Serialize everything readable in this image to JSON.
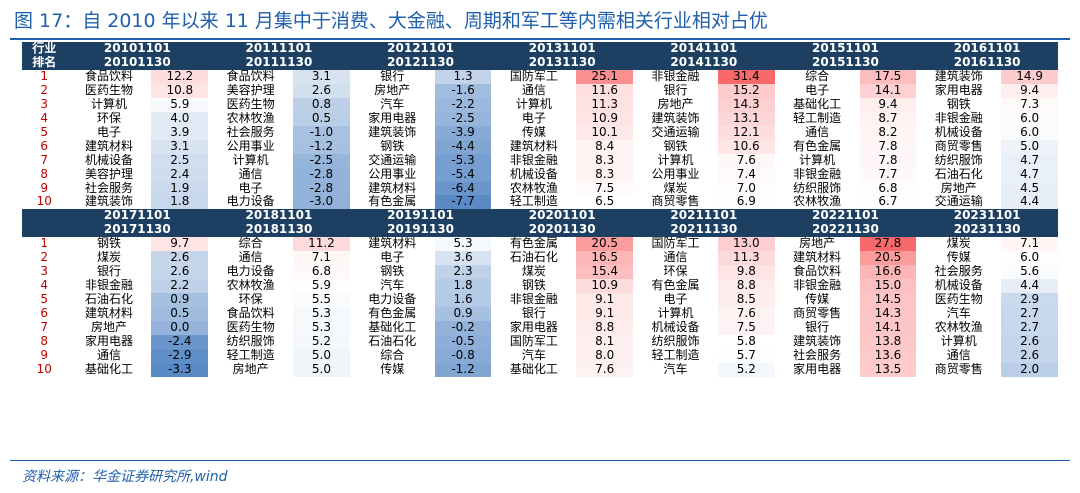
{
  "title": "图 17：自 2010 年以来 11 月集中于消费、大金融、周期和军工等内需相关行业相对占优",
  "source": "资料来源：华金证券研究所,wind",
  "header_labels": {
    "industry": "行业",
    "rank": "排名"
  },
  "colors": {
    "header_bg": "#1d3f62",
    "title": "#1f5fae",
    "rank_text": "#c00000",
    "positive_max": "#f8696b",
    "negative_max": "#5a8ac6",
    "neutral": "#ffffff"
  },
  "blocks": [
    {
      "periods": [
        {
          "start": "20101101",
          "end": "20101130",
          "industries": [
            "食品饮料",
            "医药生物",
            "计算机",
            "环保",
            "电子",
            "建筑材料",
            "机械设备",
            "美容护理",
            "社会服务",
            "建筑装饰"
          ],
          "values": [
            "12.2",
            "10.8",
            "5.9",
            "4.0",
            "3.9",
            "3.1",
            "2.5",
            "2.4",
            "1.9",
            "1.8"
          ]
        },
        {
          "start": "20111101",
          "end": "20111130",
          "industries": [
            "食品饮料",
            "美容护理",
            "医药生物",
            "农林牧渔",
            "社会服务",
            "公用事业",
            "计算机",
            "通信",
            "电子",
            "电力设备"
          ],
          "values": [
            "3.1",
            "2.6",
            "0.8",
            "0.5",
            "-1.0",
            "-1.2",
            "-2.5",
            "-2.8",
            "-2.8",
            "-3.0"
          ]
        },
        {
          "start": "20121101",
          "end": "20121130",
          "industries": [
            "银行",
            "房地产",
            "汽车",
            "家用电器",
            "建筑装饰",
            "钢铁",
            "交通运输",
            "公用事业",
            "建筑材料",
            "有色金属"
          ],
          "values": [
            "1.3",
            "-1.6",
            "-2.2",
            "-2.5",
            "-3.9",
            "-4.4",
            "-5.3",
            "-5.4",
            "-6.4",
            "-7.7"
          ]
        },
        {
          "start": "20131101",
          "end": "20131130",
          "industries": [
            "国防军工",
            "通信",
            "计算机",
            "电子",
            "传媒",
            "建筑材料",
            "非银金融",
            "机械设备",
            "农林牧渔",
            "轻工制造"
          ],
          "values": [
            "25.1",
            "11.6",
            "11.3",
            "10.9",
            "10.1",
            "8.4",
            "8.3",
            "8.3",
            "7.5",
            "6.5"
          ]
        },
        {
          "start": "20141101",
          "end": "20141130",
          "industries": [
            "非银金融",
            "银行",
            "房地产",
            "建筑装饰",
            "交通运输",
            "钢铁",
            "计算机",
            "公用事业",
            "煤炭",
            "商贸零售"
          ],
          "values": [
            "31.4",
            "15.2",
            "14.3",
            "13.1",
            "12.1",
            "10.6",
            "7.6",
            "7.4",
            "7.0",
            "6.9"
          ]
        },
        {
          "start": "20151101",
          "end": "20151130",
          "industries": [
            "综合",
            "电子",
            "基础化工",
            "轻工制造",
            "通信",
            "有色金属",
            "计算机",
            "非银金融",
            "纺织服饰",
            "农林牧渔"
          ],
          "values": [
            "17.5",
            "14.1",
            "9.4",
            "8.7",
            "8.2",
            "7.8",
            "7.8",
            "7.7",
            "6.8",
            "6.7"
          ]
        },
        {
          "start": "20161101",
          "end": "20161130",
          "industries": [
            "建筑装饰",
            "家用电器",
            "钢铁",
            "非银金融",
            "机械设备",
            "商贸零售",
            "纺织服饰",
            "石油石化",
            "房地产",
            "交通运输"
          ],
          "values": [
            "14.9",
            "9.4",
            "7.3",
            "6.0",
            "6.0",
            "5.0",
            "4.7",
            "4.7",
            "4.5",
            "4.4"
          ]
        }
      ]
    },
    {
      "periods": [
        {
          "start": "20171101",
          "end": "20171130",
          "industries": [
            "钢铁",
            "煤炭",
            "银行",
            "非银金融",
            "石油石化",
            "建筑材料",
            "房地产",
            "家用电器",
            "通信",
            "基础化工"
          ],
          "values": [
            "9.7",
            "2.6",
            "2.6",
            "2.2",
            "0.9",
            "0.5",
            "0.0",
            "-2.4",
            "-2.9",
            "-3.3"
          ]
        },
        {
          "start": "20181101",
          "end": "20181130",
          "industries": [
            "综合",
            "通信",
            "电力设备",
            "农林牧渔",
            "环保",
            "食品饮料",
            "医药生物",
            "纺织服饰",
            "轻工制造",
            "房地产"
          ],
          "values": [
            "11.2",
            "7.1",
            "6.8",
            "5.9",
            "5.5",
            "5.3",
            "5.3",
            "5.2",
            "5.0",
            "5.0"
          ]
        },
        {
          "start": "20191101",
          "end": "20191130",
          "industries": [
            "建筑材料",
            "电子",
            "钢铁",
            "汽车",
            "电力设备",
            "有色金属",
            "基础化工",
            "石油石化",
            "综合",
            "传媒"
          ],
          "values": [
            "5.3",
            "3.6",
            "2.3",
            "1.8",
            "1.6",
            "0.9",
            "-0.2",
            "-0.5",
            "-0.8",
            "-1.2"
          ]
        },
        {
          "start": "20201101",
          "end": "20201130",
          "industries": [
            "有色金属",
            "石油石化",
            "煤炭",
            "钢铁",
            "非银金融",
            "银行",
            "家用电器",
            "国防军工",
            "汽车",
            "基础化工"
          ],
          "values": [
            "20.5",
            "16.5",
            "15.4",
            "10.9",
            "9.1",
            "9.1",
            "8.8",
            "8.1",
            "8.0",
            "7.6"
          ]
        },
        {
          "start": "20211101",
          "end": "20211130",
          "industries": [
            "国防军工",
            "通信",
            "环保",
            "有色金属",
            "电子",
            "计算机",
            "机械设备",
            "纺织服饰",
            "轻工制造",
            "汽车"
          ],
          "values": [
            "13.0",
            "11.3",
            "9.8",
            "8.8",
            "8.5",
            "7.6",
            "7.5",
            "5.8",
            "5.7",
            "5.2"
          ]
        },
        {
          "start": "20221101",
          "end": "20221130",
          "industries": [
            "房地产",
            "建筑材料",
            "食品饮料",
            "非银金融",
            "传媒",
            "商贸零售",
            "银行",
            "建筑装饰",
            "社会服务",
            "家用电器"
          ],
          "values": [
            "27.8",
            "20.5",
            "16.6",
            "15.0",
            "14.5",
            "14.3",
            "14.1",
            "13.8",
            "13.6",
            "13.5"
          ]
        },
        {
          "start": "20231101",
          "end": "20231130",
          "industries": [
            "煤炭",
            "传媒",
            "社会服务",
            "机械设备",
            "医药生物",
            "汽车",
            "农林牧渔",
            "计算机",
            "通信",
            "商贸零售"
          ],
          "values": [
            "7.1",
            "6.0",
            "5.6",
            "4.4",
            "2.9",
            "2.7",
            "2.7",
            "2.6",
            "2.6",
            "2.0"
          ]
        }
      ]
    }
  ]
}
